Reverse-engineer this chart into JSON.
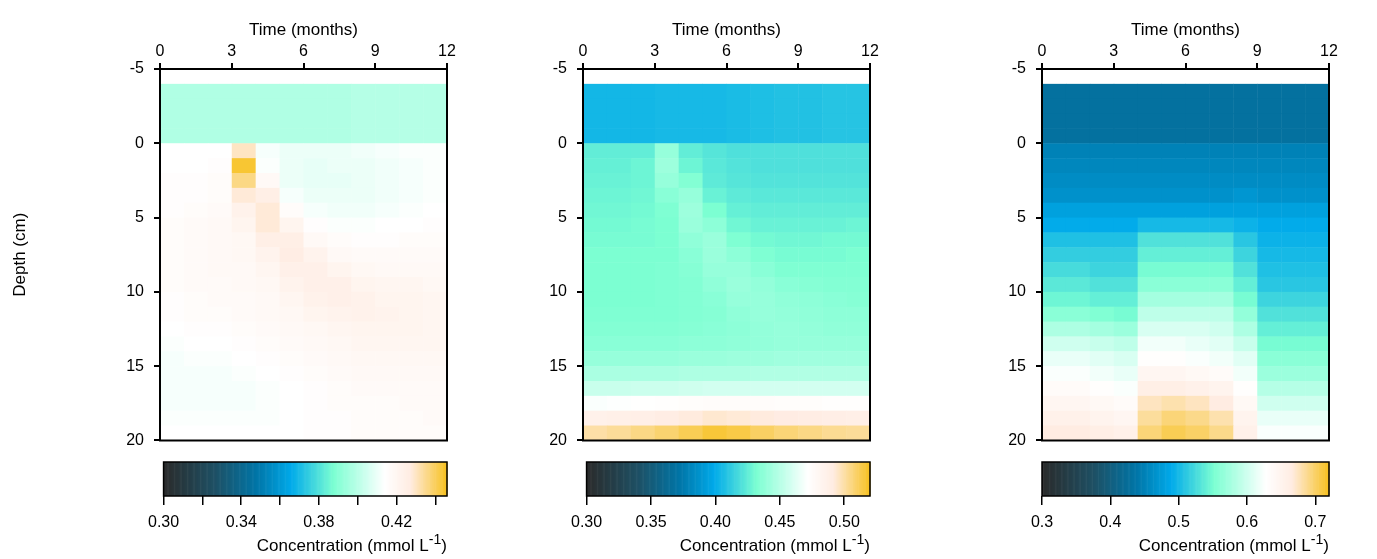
{
  "chart_data": [
    {
      "type": "heatmap",
      "xlabel": "Time (months)",
      "ylabel": "Depth (cm)",
      "clabel": "Concentration (mmol L$^{-1}$)",
      "x": [
        0.5,
        1.5,
        2.5,
        3.5,
        4.5,
        5.5,
        6.5,
        7.5,
        8.5,
        9.5,
        10.5,
        11.5
      ],
      "y": [
        -3.5,
        -2.5,
        -1.5,
        -0.5,
        0.5,
        1.5,
        2.5,
        3.5,
        4.5,
        5.5,
        6.5,
        7.5,
        8.5,
        9.5,
        10.5,
        11.5,
        12.5,
        13.5,
        14.5,
        15.5,
        16.5,
        17.5,
        18.5,
        19.5
      ],
      "xlim": [
        0,
        12
      ],
      "xticks": [
        0,
        3,
        6,
        9,
        12
      ],
      "ylim": [
        20,
        -5
      ],
      "yticks": [
        -5,
        0,
        5,
        10,
        15,
        20
      ],
      "clim": [
        0.3,
        0.446
      ],
      "cticks": [
        {
          "value": 0.3,
          "label": "0.30"
        },
        {
          "value": 0.32,
          "label": null
        },
        {
          "value": 0.34,
          "label": "0.34"
        },
        {
          "value": 0.36,
          "label": null
        },
        {
          "value": 0.38,
          "label": "0.38"
        },
        {
          "value": 0.4,
          "label": null
        },
        {
          "value": 0.42,
          "label": "0.42"
        },
        {
          "value": 0.44,
          "label": null
        }
      ],
      "cells": [
        [
          0.398,
          0.398,
          0.398,
          0.398,
          0.398,
          0.398,
          0.398,
          0.398,
          0.399,
          0.399,
          0.399,
          0.399
        ],
        [
          0.398,
          0.398,
          0.398,
          0.398,
          0.398,
          0.398,
          0.398,
          0.398,
          0.399,
          0.399,
          0.399,
          0.399
        ],
        [
          0.398,
          0.398,
          0.398,
          0.398,
          0.398,
          0.398,
          0.398,
          0.398,
          0.399,
          0.399,
          0.399,
          0.399
        ],
        [
          0.398,
          0.398,
          0.398,
          0.398,
          0.398,
          0.398,
          0.398,
          0.398,
          0.399,
          0.399,
          0.399,
          0.399
        ],
        [
          0.414,
          0.414,
          0.414,
          0.43,
          0.412,
          0.41,
          0.41,
          0.41,
          0.411,
          0.412,
          0.413,
          0.413
        ],
        [
          0.414,
          0.414,
          0.415,
          0.444,
          0.413,
          0.41,
          0.409,
          0.41,
          0.41,
          0.411,
          0.412,
          0.413
        ],
        [
          0.415,
          0.415,
          0.416,
          0.436,
          0.418,
          0.41,
          0.409,
          0.409,
          0.41,
          0.411,
          0.412,
          0.413
        ],
        [
          0.415,
          0.415,
          0.416,
          0.428,
          0.425,
          0.412,
          0.41,
          0.41,
          0.41,
          0.411,
          0.412,
          0.413
        ],
        [
          0.415,
          0.416,
          0.417,
          0.423,
          0.428,
          0.416,
          0.412,
          0.411,
          0.411,
          0.412,
          0.413,
          0.414
        ],
        [
          0.416,
          0.417,
          0.418,
          0.421,
          0.428,
          0.421,
          0.415,
          0.413,
          0.413,
          0.414,
          0.414,
          0.415
        ],
        [
          0.416,
          0.417,
          0.418,
          0.419,
          0.425,
          0.425,
          0.418,
          0.416,
          0.415,
          0.415,
          0.416,
          0.416
        ],
        [
          0.416,
          0.417,
          0.418,
          0.419,
          0.422,
          0.426,
          0.422,
          0.418,
          0.417,
          0.417,
          0.417,
          0.417
        ],
        [
          0.416,
          0.417,
          0.418,
          0.418,
          0.42,
          0.424,
          0.424,
          0.421,
          0.419,
          0.418,
          0.418,
          0.418
        ],
        [
          0.416,
          0.417,
          0.417,
          0.418,
          0.419,
          0.422,
          0.424,
          0.424,
          0.421,
          0.42,
          0.42,
          0.419
        ],
        [
          0.415,
          0.416,
          0.417,
          0.417,
          0.418,
          0.42,
          0.423,
          0.424,
          0.423,
          0.421,
          0.421,
          0.42
        ],
        [
          0.415,
          0.416,
          0.416,
          0.417,
          0.418,
          0.419,
          0.421,
          0.422,
          0.423,
          0.422,
          0.421,
          0.42
        ],
        [
          0.414,
          0.415,
          0.415,
          0.416,
          0.417,
          0.418,
          0.419,
          0.42,
          0.421,
          0.421,
          0.421,
          0.42
        ],
        [
          0.413,
          0.414,
          0.414,
          0.415,
          0.416,
          0.417,
          0.418,
          0.419,
          0.42,
          0.42,
          0.42,
          0.42
        ],
        [
          0.412,
          0.413,
          0.413,
          0.414,
          0.415,
          0.416,
          0.417,
          0.418,
          0.419,
          0.419,
          0.419,
          0.419
        ],
        [
          0.412,
          0.412,
          0.412,
          0.413,
          0.414,
          0.415,
          0.416,
          0.417,
          0.418,
          0.418,
          0.418,
          0.418
        ],
        [
          0.412,
          0.412,
          0.412,
          0.412,
          0.413,
          0.414,
          0.415,
          0.416,
          0.417,
          0.417,
          0.417,
          0.417
        ],
        [
          0.412,
          0.412,
          0.412,
          0.412,
          0.413,
          0.414,
          0.415,
          0.416,
          0.416,
          0.416,
          0.417,
          0.417
        ],
        [
          0.413,
          0.413,
          0.413,
          0.413,
          0.413,
          0.414,
          0.415,
          0.415,
          0.416,
          0.416,
          0.416,
          0.417
        ],
        [
          0.414,
          0.414,
          0.414,
          0.414,
          0.414,
          0.414,
          0.415,
          0.415,
          0.416,
          0.416,
          0.416,
          0.416
        ]
      ]
    },
    {
      "type": "heatmap",
      "xlabel": "Time (months)",
      "clabel": "Concentration (mmol L$^{-1}$)",
      "x": [
        0.5,
        1.5,
        2.5,
        3.5,
        4.5,
        5.5,
        6.5,
        7.5,
        8.5,
        9.5,
        10.5,
        11.5
      ],
      "y": [
        -3.5,
        -2.5,
        -1.5,
        -0.5,
        0.5,
        1.5,
        2.5,
        3.5,
        4.5,
        5.5,
        6.5,
        7.5,
        8.5,
        9.5,
        10.5,
        11.5,
        12.5,
        13.5,
        14.5,
        15.5,
        16.5,
        17.5,
        18.5,
        19.5
      ],
      "xlim": [
        0,
        12
      ],
      "xticks": [
        0,
        3,
        6,
        9,
        12
      ],
      "ylim": [
        20,
        -5
      ],
      "yticks": [
        -5,
        0,
        5,
        10,
        15,
        20
      ],
      "clim": [
        0.3,
        0.52
      ],
      "cticks": [
        {
          "value": 0.3,
          "label": "0.30"
        },
        {
          "value": 0.35,
          "label": "0.35"
        },
        {
          "value": 0.4,
          "label": "0.40"
        },
        {
          "value": 0.45,
          "label": "0.45"
        },
        {
          "value": 0.5,
          "label": "0.50"
        }
      ],
      "cells": [
        [
          0.404,
          0.404,
          0.404,
          0.405,
          0.405,
          0.405,
          0.406,
          0.407,
          0.408,
          0.408,
          0.409,
          0.409
        ],
        [
          0.404,
          0.404,
          0.404,
          0.405,
          0.405,
          0.405,
          0.406,
          0.407,
          0.408,
          0.408,
          0.409,
          0.409
        ],
        [
          0.404,
          0.404,
          0.404,
          0.405,
          0.405,
          0.405,
          0.406,
          0.407,
          0.408,
          0.408,
          0.409,
          0.409
        ],
        [
          0.404,
          0.404,
          0.404,
          0.405,
          0.405,
          0.405,
          0.406,
          0.407,
          0.408,
          0.408,
          0.409,
          0.409
        ],
        [
          0.425,
          0.425,
          0.425,
          0.44,
          0.425,
          0.422,
          0.42,
          0.42,
          0.42,
          0.42,
          0.42,
          0.42
        ],
        [
          0.426,
          0.426,
          0.428,
          0.442,
          0.428,
          0.423,
          0.421,
          0.42,
          0.42,
          0.42,
          0.42,
          0.42
        ],
        [
          0.427,
          0.427,
          0.428,
          0.44,
          0.434,
          0.424,
          0.422,
          0.421,
          0.421,
          0.421,
          0.421,
          0.421
        ],
        [
          0.428,
          0.428,
          0.429,
          0.436,
          0.44,
          0.427,
          0.424,
          0.423,
          0.423,
          0.423,
          0.423,
          0.423
        ],
        [
          0.429,
          0.429,
          0.43,
          0.433,
          0.442,
          0.432,
          0.426,
          0.425,
          0.425,
          0.425,
          0.425,
          0.425
        ],
        [
          0.43,
          0.43,
          0.431,
          0.432,
          0.441,
          0.437,
          0.429,
          0.427,
          0.427,
          0.427,
          0.427,
          0.428
        ],
        [
          0.431,
          0.431,
          0.431,
          0.432,
          0.438,
          0.441,
          0.433,
          0.43,
          0.429,
          0.429,
          0.43,
          0.43
        ],
        [
          0.432,
          0.432,
          0.432,
          0.432,
          0.436,
          0.441,
          0.437,
          0.433,
          0.431,
          0.431,
          0.431,
          0.432
        ],
        [
          0.432,
          0.432,
          0.432,
          0.433,
          0.435,
          0.44,
          0.44,
          0.436,
          0.433,
          0.433,
          0.433,
          0.433
        ],
        [
          0.432,
          0.432,
          0.432,
          0.433,
          0.434,
          0.438,
          0.441,
          0.439,
          0.436,
          0.435,
          0.434,
          0.434
        ],
        [
          0.432,
          0.432,
          0.432,
          0.433,
          0.434,
          0.436,
          0.44,
          0.44,
          0.438,
          0.437,
          0.436,
          0.435
        ],
        [
          0.433,
          0.433,
          0.433,
          0.433,
          0.434,
          0.435,
          0.438,
          0.44,
          0.439,
          0.438,
          0.437,
          0.437
        ],
        [
          0.434,
          0.434,
          0.434,
          0.434,
          0.435,
          0.436,
          0.437,
          0.439,
          0.44,
          0.439,
          0.438,
          0.438
        ],
        [
          0.436,
          0.436,
          0.436,
          0.436,
          0.437,
          0.437,
          0.438,
          0.439,
          0.44,
          0.44,
          0.44,
          0.44
        ],
        [
          0.44,
          0.44,
          0.44,
          0.44,
          0.441,
          0.441,
          0.442,
          0.442,
          0.443,
          0.443,
          0.443,
          0.443
        ],
        [
          0.446,
          0.446,
          0.446,
          0.446,
          0.447,
          0.447,
          0.447,
          0.448,
          0.448,
          0.448,
          0.448,
          0.448
        ],
        [
          0.455,
          0.455,
          0.456,
          0.456,
          0.457,
          0.458,
          0.458,
          0.458,
          0.458,
          0.458,
          0.458,
          0.458
        ],
        [
          0.47,
          0.471,
          0.472,
          0.473,
          0.474,
          0.475,
          0.475,
          0.475,
          0.474,
          0.474,
          0.473,
          0.473
        ],
        [
          0.486,
          0.487,
          0.488,
          0.49,
          0.492,
          0.494,
          0.493,
          0.492,
          0.491,
          0.49,
          0.489,
          0.488
        ],
        [
          0.5,
          0.502,
          0.505,
          0.508,
          0.512,
          0.516,
          0.514,
          0.51,
          0.507,
          0.505,
          0.503,
          0.502
        ]
      ]
    },
    {
      "type": "heatmap",
      "xlabel": "Time (months)",
      "clabel": "Concentration (mmol L$^{-1}$)",
      "x": [
        0.5,
        1.5,
        2.5,
        3.5,
        4.5,
        5.5,
        6.5,
        7.5,
        8.5,
        9.5,
        10.5,
        11.5
      ],
      "y": [
        -3.5,
        -2.5,
        -1.5,
        -0.5,
        0.5,
        1.5,
        2.5,
        3.5,
        4.5,
        5.5,
        6.5,
        7.5,
        8.5,
        9.5,
        10.5,
        11.5,
        12.5,
        13.5,
        14.5,
        15.5,
        16.5,
        17.5,
        18.5,
        19.5
      ],
      "xlim": [
        0,
        12
      ],
      "xticks": [
        0,
        3,
        6,
        9,
        12
      ],
      "ylim": [
        20,
        -5
      ],
      "yticks": [
        -5,
        0,
        5,
        10,
        15,
        20
      ],
      "clim": [
        0.3,
        0.72
      ],
      "cticks": [
        0.3,
        0.4,
        0.5,
        0.6,
        0.7
      ],
      "cells": [
        [
          0.43,
          0.43,
          0.43,
          0.43,
          0.43,
          0.43,
          0.43,
          0.43,
          0.43,
          0.43,
          0.43,
          0.43
        ],
        [
          0.43,
          0.43,
          0.43,
          0.43,
          0.43,
          0.43,
          0.43,
          0.43,
          0.43,
          0.43,
          0.43,
          0.43
        ],
        [
          0.43,
          0.43,
          0.43,
          0.43,
          0.43,
          0.43,
          0.43,
          0.43,
          0.43,
          0.43,
          0.43,
          0.43
        ],
        [
          0.43,
          0.43,
          0.43,
          0.43,
          0.43,
          0.43,
          0.43,
          0.43,
          0.43,
          0.43,
          0.43,
          0.43
        ],
        [
          0.45,
          0.45,
          0.45,
          0.45,
          0.45,
          0.45,
          0.45,
          0.45,
          0.45,
          0.45,
          0.45,
          0.45
        ],
        [
          0.455,
          0.455,
          0.455,
          0.455,
          0.455,
          0.455,
          0.455,
          0.455,
          0.455,
          0.455,
          0.455,
          0.455
        ],
        [
          0.46,
          0.46,
          0.46,
          0.46,
          0.46,
          0.46,
          0.46,
          0.46,
          0.46,
          0.46,
          0.46,
          0.46
        ],
        [
          0.465,
          0.465,
          0.465,
          0.465,
          0.465,
          0.465,
          0.465,
          0.465,
          0.47,
          0.465,
          0.465,
          0.465
        ],
        [
          0.48,
          0.48,
          0.48,
          0.48,
          0.48,
          0.48,
          0.48,
          0.48,
          0.48,
          0.48,
          0.48,
          0.48
        ],
        [
          0.49,
          0.49,
          0.49,
          0.49,
          0.5,
          0.5,
          0.5,
          0.5,
          0.495,
          0.49,
          0.49,
          0.49
        ],
        [
          0.505,
          0.505,
          0.505,
          0.505,
          0.53,
          0.53,
          0.53,
          0.53,
          0.51,
          0.495,
          0.495,
          0.495
        ],
        [
          0.515,
          0.515,
          0.515,
          0.515,
          0.54,
          0.54,
          0.54,
          0.54,
          0.52,
          0.5,
          0.5,
          0.5
        ],
        [
          0.525,
          0.525,
          0.52,
          0.52,
          0.55,
          0.55,
          0.55,
          0.55,
          0.53,
          0.505,
          0.505,
          0.505
        ],
        [
          0.535,
          0.535,
          0.53,
          0.53,
          0.56,
          0.56,
          0.56,
          0.56,
          0.54,
          0.51,
          0.51,
          0.51
        ],
        [
          0.545,
          0.545,
          0.54,
          0.54,
          0.575,
          0.575,
          0.575,
          0.575,
          0.55,
          0.52,
          0.52,
          0.52
        ],
        [
          0.56,
          0.56,
          0.555,
          0.55,
          0.59,
          0.59,
          0.59,
          0.59,
          0.565,
          0.53,
          0.53,
          0.53
        ],
        [
          0.58,
          0.58,
          0.575,
          0.57,
          0.605,
          0.605,
          0.605,
          0.6,
          0.58,
          0.54,
          0.54,
          0.54
        ],
        [
          0.6,
          0.6,
          0.595,
          0.59,
          0.62,
          0.62,
          0.615,
          0.61,
          0.595,
          0.55,
          0.55,
          0.55
        ],
        [
          0.615,
          0.615,
          0.61,
          0.605,
          0.63,
          0.63,
          0.625,
          0.62,
          0.61,
          0.56,
          0.56,
          0.56
        ],
        [
          0.625,
          0.625,
          0.62,
          0.615,
          0.645,
          0.645,
          0.64,
          0.635,
          0.62,
          0.57,
          0.57,
          0.57
        ],
        [
          0.635,
          0.635,
          0.63,
          0.625,
          0.66,
          0.66,
          0.655,
          0.65,
          0.63,
          0.585,
          0.585,
          0.585
        ],
        [
          0.645,
          0.645,
          0.64,
          0.635,
          0.675,
          0.68,
          0.675,
          0.665,
          0.64,
          0.6,
          0.6,
          0.6
        ],
        [
          0.655,
          0.655,
          0.65,
          0.645,
          0.685,
          0.695,
          0.69,
          0.68,
          0.65,
          0.615,
          0.615,
          0.615
        ],
        [
          0.665,
          0.665,
          0.66,
          0.655,
          0.695,
          0.705,
          0.7,
          0.69,
          0.655,
          0.625,
          0.625,
          0.625
        ]
      ]
    }
  ]
}
